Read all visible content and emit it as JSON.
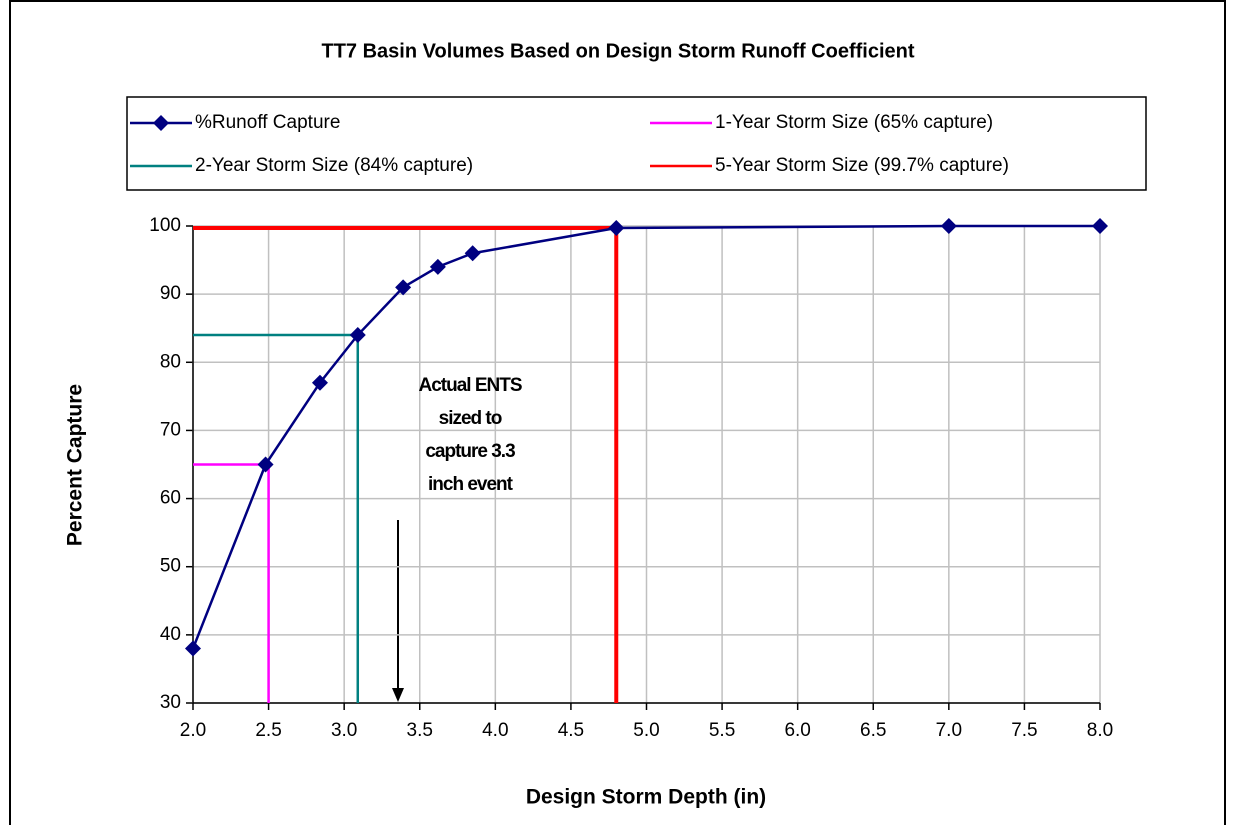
{
  "chart_data": {
    "type": "line",
    "title": "TT7 Basin Volumes Based on Design Storm Runoff Coefficient",
    "xlabel": "Design Storm Depth (in)",
    "ylabel": "Percent Capture",
    "xlim": [
      2,
      8
    ],
    "ylim": [
      30,
      100
    ],
    "xticks": [
      {
        "value": 2,
        "label": "2.0"
      },
      {
        "value": 2.5,
        "label": "2.5"
      },
      {
        "value": 3,
        "label": "3.0"
      },
      {
        "value": 3.5,
        "label": "3.5"
      },
      {
        "value": 4,
        "label": "4.0"
      },
      {
        "value": 4.5,
        "label": "4.5"
      },
      {
        "value": 5,
        "label": "5.0"
      },
      {
        "value": 5.5,
        "label": "5.5"
      },
      {
        "value": 6,
        "label": "6.0"
      },
      {
        "value": 6.5,
        "label": "6.5"
      },
      {
        "value": 7,
        "label": "7.0"
      },
      {
        "value": 7.5,
        "label": "7.5"
      },
      {
        "value": 8,
        "label": "8.0"
      }
    ],
    "yticks": [
      30,
      40,
      50,
      60,
      70,
      80,
      90,
      100
    ],
    "grid": true,
    "series": [
      {
        "name": "%Runoff Capture",
        "color": "#000080",
        "marker": "diamond",
        "x": [
          2.0,
          2.48,
          2.84,
          3.09,
          3.39,
          3.62,
          3.85,
          4.8,
          7.0,
          8.0
        ],
        "values": [
          38,
          65,
          77,
          84,
          91,
          94,
          96,
          99.7,
          100,
          100
        ]
      },
      {
        "name": "1-Year Storm Size (65% capture)",
        "color": "#ff00ff",
        "x": [
          2.0,
          2.5,
          2.5
        ],
        "values": [
          65,
          65,
          30
        ]
      },
      {
        "name": "2-Year Storm Size (84% capture)",
        "color": "#008080",
        "x": [
          2.0,
          3.09,
          3.09
        ],
        "values": [
          84,
          84,
          30
        ]
      },
      {
        "name": "5-Year Storm Size (99.7% capture)",
        "color": "#ff0000",
        "x": [
          2.0,
          4.8,
          4.8
        ],
        "values": [
          99.7,
          99.7,
          30
        ]
      }
    ],
    "annotation": [
      "Actual ENTS",
      "sized to",
      "capture 3.3",
      "inch event"
    ]
  }
}
